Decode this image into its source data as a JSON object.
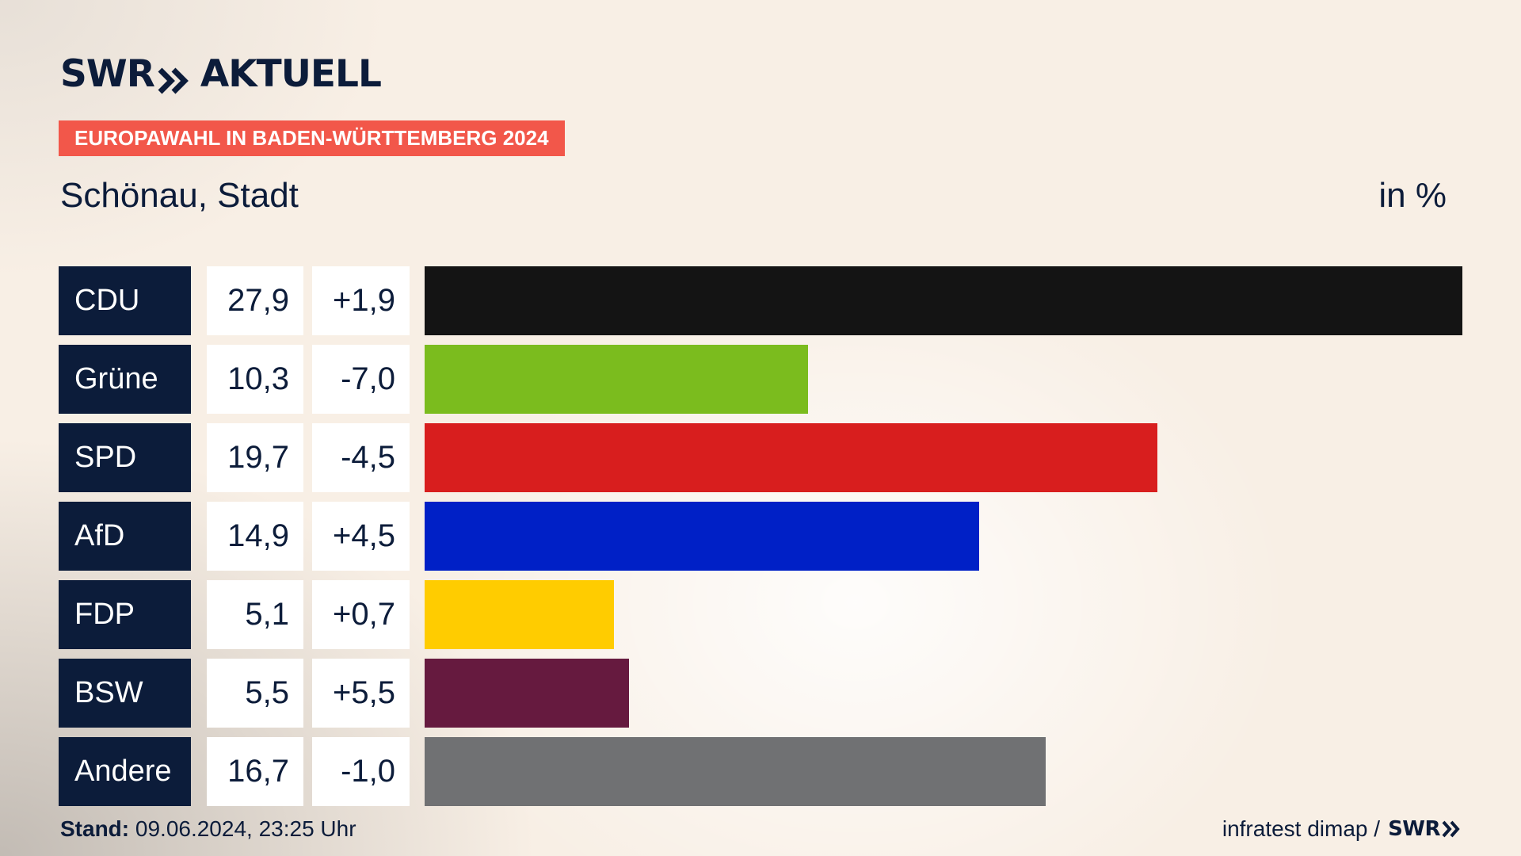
{
  "brand": {
    "logo_left": "SWR",
    "logo_right": "AKTUELL",
    "icon": "double-chevron-right-icon"
  },
  "badge": "EUROPAWAHL IN BADEN-WÜRTTEMBERG 2024",
  "region": "Schönau, Stadt",
  "unit": "in %",
  "footer": {
    "stand_label": "Stand:",
    "stand_value": "09.06.2024, 23:25 Uhr",
    "source": "infratest dimap /",
    "source_brand": "SWR"
  },
  "colors": {
    "navy": "#0c1c3a",
    "badge": "#f2574a",
    "background": "#f8efe5"
  },
  "chart_data": {
    "type": "bar",
    "orientation": "horizontal",
    "categories": [
      "CDU",
      "Grüne",
      "SPD",
      "AfD",
      "FDP",
      "BSW",
      "Andere"
    ],
    "values": [
      27.9,
      10.3,
      19.7,
      14.9,
      5.1,
      5.5,
      16.7
    ],
    "value_labels": [
      "27,9",
      "10,3",
      "19,7",
      "14,9",
      "5,1",
      "5,5",
      "16,7"
    ],
    "diff_labels": [
      "+1,9",
      "-7,0",
      "-4,5",
      "+4,5",
      "+0,7",
      "+5,5",
      "-1,0"
    ],
    "colors": [
      "#141414",
      "#7bbc1e",
      "#d81e1e",
      "#0020c6",
      "#ffcc00",
      "#661a3f",
      "#707173"
    ],
    "xlim": [
      0,
      27.9
    ]
  }
}
